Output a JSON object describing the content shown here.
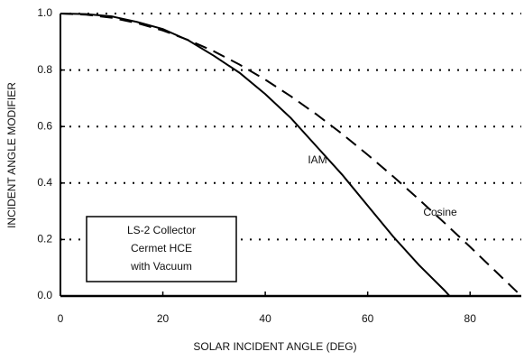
{
  "chart_data": {
    "type": "line",
    "xlabel": "SOLAR INCIDENT ANGLE (DEG)",
    "ylabel": "INCIDENT ANGLE MODIFIER",
    "xlim": [
      0,
      90
    ],
    "ylim": [
      0,
      1
    ],
    "xticks": [
      0,
      20,
      40,
      60,
      80
    ],
    "yticks": [
      {
        "value": 0,
        "label": "0.0"
      },
      0.2,
      0.4,
      0.6,
      0.8,
      {
        "value": 1,
        "label": "1.0"
      }
    ],
    "grid": true,
    "series": [
      {
        "name": "IAM",
        "color": "#000000",
        "style": "solid",
        "x": [
          0,
          5,
          10,
          15,
          20,
          25,
          30,
          35,
          40,
          45,
          50,
          55,
          60,
          65,
          70,
          75,
          76
        ],
        "values": [
          1,
          0.998,
          0.99,
          0.97,
          0.945,
          0.905,
          0.85,
          0.79,
          0.715,
          0.63,
          0.53,
          0.43,
          0.32,
          0.21,
          0.11,
          0.02,
          0
        ]
      },
      {
        "name": "Cosine",
        "color": "#000000",
        "style": "dashed",
        "x": [
          0,
          5,
          10,
          15,
          20,
          25,
          30,
          35,
          40,
          45,
          50,
          55,
          60,
          65,
          70,
          75,
          80,
          85,
          90
        ],
        "values": [
          1,
          0.996,
          0.985,
          0.966,
          0.94,
          0.906,
          0.866,
          0.819,
          0.766,
          0.707,
          0.643,
          0.574,
          0.5,
          0.423,
          0.342,
          0.259,
          0.174,
          0.087,
          0
        ]
      }
    ],
    "annotations": [
      "LS-2 Collector",
      "Cermet HCE",
      "with Vacuum"
    ]
  }
}
